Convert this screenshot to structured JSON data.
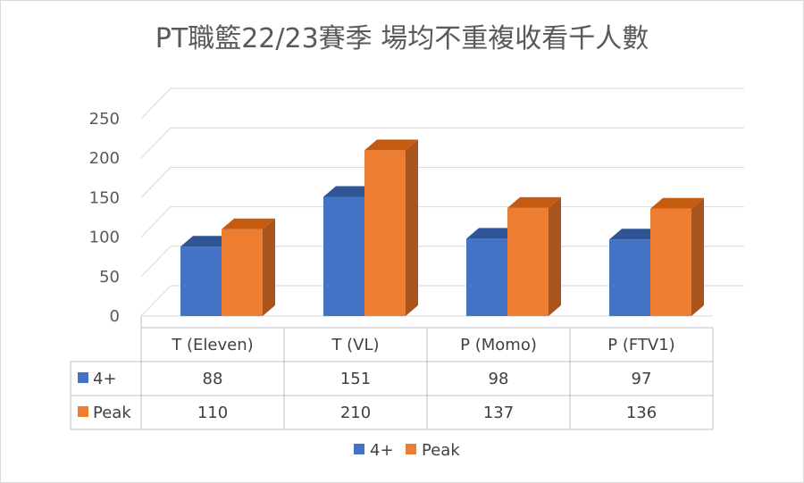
{
  "chart_data": {
    "type": "bar",
    "title": "PT職籃22/23賽季 場均不重複收看千人數",
    "categories": [
      "T (Eleven)",
      "T (VL)",
      "P (Momo)",
      "P (FTV1)"
    ],
    "series": [
      {
        "name": "4+",
        "values": [
          88,
          151,
          98,
          97
        ],
        "color": "#4472c4",
        "side_color": "#2e538f",
        "top_color": "#2f5597"
      },
      {
        "name": "Peak",
        "values": [
          110,
          210,
          137,
          136
        ],
        "color": "#ed7d31",
        "side_color": "#a9541d",
        "top_color": "#c55a11"
      }
    ],
    "yticks": [
      0,
      50,
      100,
      150,
      200,
      250
    ],
    "ylim": [
      0,
      250
    ],
    "grid": true,
    "legend_position": "bottom",
    "has_data_table": true,
    "style": "3d-clustered-column"
  }
}
